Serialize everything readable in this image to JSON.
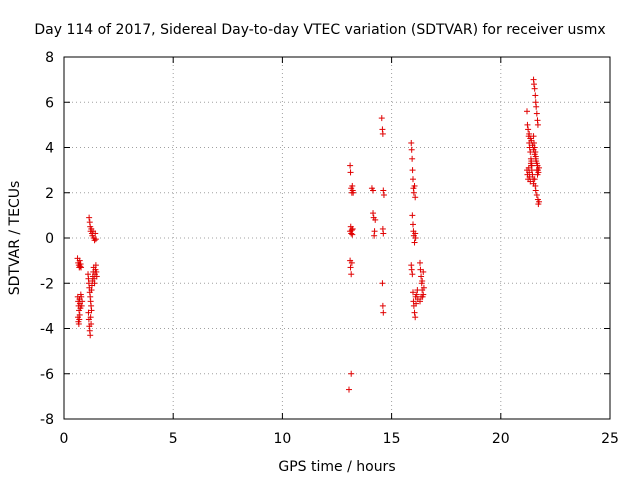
{
  "chart_data": {
    "type": "scatter",
    "title": "Day 114 of 2017, Sidereal Day-to-day VTEC variation (SDTVAR) for receiver usmx",
    "xlabel": "GPS time / hours",
    "ylabel": "SDTVAR / TECUs",
    "xlim": [
      0,
      25
    ],
    "ylim": [
      -8,
      8
    ],
    "xticks": [
      0,
      5,
      10,
      15,
      20,
      25
    ],
    "yticks": [
      -8,
      -6,
      -4,
      -2,
      0,
      2,
      4,
      6,
      8
    ],
    "xtick_labels": [
      "0",
      "5",
      "10",
      "15",
      "20",
      "25"
    ],
    "ytick_labels": [
      "-8",
      "-6",
      "-4",
      "-2",
      "0",
      "2",
      "4",
      "6",
      "8"
    ],
    "grid": true,
    "marker": "+",
    "color": "#e00000",
    "series": [
      {
        "name": "SDTVAR",
        "points": [
          [
            0.62,
            -0.9
          ],
          [
            0.65,
            -1.1
          ],
          [
            0.68,
            -1.2
          ],
          [
            0.7,
            -1.3
          ],
          [
            0.72,
            -1.0
          ],
          [
            0.74,
            -1.25
          ],
          [
            0.76,
            -1.15
          ],
          [
            0.78,
            -1.3
          ],
          [
            0.63,
            -2.6
          ],
          [
            0.65,
            -2.8
          ],
          [
            0.67,
            -3.0
          ],
          [
            0.69,
            -3.2
          ],
          [
            0.71,
            -2.7
          ],
          [
            0.73,
            -2.9
          ],
          [
            0.75,
            -3.1
          ],
          [
            0.77,
            -2.5
          ],
          [
            0.79,
            -2.6
          ],
          [
            0.81,
            -3.0
          ],
          [
            0.83,
            -2.8
          ],
          [
            0.64,
            -3.5
          ],
          [
            0.66,
            -3.7
          ],
          [
            0.68,
            -3.8
          ],
          [
            0.7,
            -3.6
          ],
          [
            0.72,
            -3.4
          ],
          [
            1.15,
            0.9
          ],
          [
            1.18,
            0.7
          ],
          [
            1.2,
            0.5
          ],
          [
            1.22,
            0.3
          ],
          [
            1.25,
            0.4
          ],
          [
            1.28,
            0.2
          ],
          [
            1.3,
            0.1
          ],
          [
            1.33,
            0.3
          ],
          [
            1.36,
            0.0
          ],
          [
            1.4,
            -0.1
          ],
          [
            1.43,
            0.2
          ],
          [
            1.46,
            -0.05
          ],
          [
            1.1,
            -1.6
          ],
          [
            1.12,
            -1.8
          ],
          [
            1.14,
            -2.0
          ],
          [
            1.16,
            -2.2
          ],
          [
            1.18,
            -2.4
          ],
          [
            1.2,
            -2.6
          ],
          [
            1.22,
            -2.8
          ],
          [
            1.24,
            -3.0
          ],
          [
            1.26,
            -2.3
          ],
          [
            1.28,
            -2.1
          ],
          [
            1.3,
            -1.9
          ],
          [
            1.32,
            -1.7
          ],
          [
            1.34,
            -1.5
          ],
          [
            1.36,
            -1.3
          ],
          [
            1.38,
            -1.8
          ],
          [
            1.4,
            -2.0
          ],
          [
            1.42,
            -1.6
          ],
          [
            1.44,
            -1.4
          ],
          [
            1.46,
            -1.2
          ],
          [
            1.48,
            -1.5
          ],
          [
            1.5,
            -1.7
          ],
          [
            1.12,
            -3.3
          ],
          [
            1.14,
            -3.6
          ],
          [
            1.16,
            -3.9
          ],
          [
            1.18,
            -4.1
          ],
          [
            1.2,
            -4.3
          ],
          [
            1.22,
            -3.5
          ],
          [
            1.24,
            -3.8
          ],
          [
            1.26,
            -3.2
          ],
          [
            13.1,
            3.2
          ],
          [
            13.12,
            2.9
          ],
          [
            13.15,
            2.2
          ],
          [
            13.18,
            2.0
          ],
          [
            13.2,
            2.3
          ],
          [
            13.22,
            2.1
          ],
          [
            13.24,
            2.0
          ],
          [
            13.1,
            0.3
          ],
          [
            13.13,
            0.5
          ],
          [
            13.15,
            0.2
          ],
          [
            13.18,
            0.35
          ],
          [
            13.2,
            0.15
          ],
          [
            13.22,
            0.4
          ],
          [
            13.1,
            -1.0
          ],
          [
            13.12,
            -1.3
          ],
          [
            13.15,
            -1.6
          ],
          [
            13.18,
            -1.1
          ],
          [
            13.15,
            -6.0
          ],
          [
            13.05,
            -6.7
          ],
          [
            14.1,
            2.2
          ],
          [
            14.15,
            2.1
          ],
          [
            14.2,
            0.1
          ],
          [
            14.22,
            0.3
          ],
          [
            14.18,
            0.9
          ],
          [
            14.15,
            1.1
          ],
          [
            14.25,
            0.8
          ],
          [
            14.55,
            5.3
          ],
          [
            14.58,
            4.8
          ],
          [
            14.6,
            4.6
          ],
          [
            14.62,
            2.1
          ],
          [
            14.65,
            1.9
          ],
          [
            14.6,
            0.4
          ],
          [
            14.62,
            0.2
          ],
          [
            14.58,
            -2.0
          ],
          [
            14.6,
            -3.0
          ],
          [
            14.62,
            -3.3
          ],
          [
            15.9,
            4.2
          ],
          [
            15.92,
            3.9
          ],
          [
            15.94,
            3.5
          ],
          [
            15.96,
            3.0
          ],
          [
            15.98,
            2.6
          ],
          [
            16.0,
            2.2
          ],
          [
            16.02,
            2.0
          ],
          [
            16.05,
            2.3
          ],
          [
            16.08,
            1.8
          ],
          [
            15.95,
            1.0
          ],
          [
            15.98,
            0.6
          ],
          [
            16.0,
            0.3
          ],
          [
            16.02,
            0.1
          ],
          [
            16.05,
            -0.2
          ],
          [
            16.08,
            0.2
          ],
          [
            16.1,
            0.0
          ],
          [
            15.9,
            -1.2
          ],
          [
            15.92,
            -1.4
          ],
          [
            15.95,
            -1.6
          ],
          [
            15.98,
            -2.4
          ],
          [
            16.0,
            -2.8
          ],
          [
            16.02,
            -3.0
          ],
          [
            16.05,
            -3.3
          ],
          [
            16.08,
            -3.5
          ],
          [
            16.1,
            -2.6
          ],
          [
            16.12,
            -2.9
          ],
          [
            16.15,
            -2.5
          ],
          [
            16.18,
            -2.3
          ],
          [
            16.2,
            -2.7
          ],
          [
            16.3,
            -1.1
          ],
          [
            16.32,
            -1.4
          ],
          [
            16.35,
            -1.7
          ],
          [
            16.38,
            -2.0
          ],
          [
            16.4,
            -2.3
          ],
          [
            16.42,
            -2.6
          ],
          [
            16.45,
            -2.5
          ],
          [
            16.48,
            -2.2
          ],
          [
            16.3,
            -2.8
          ],
          [
            16.35,
            -2.6
          ],
          [
            16.4,
            -1.9
          ],
          [
            16.45,
            -1.5
          ],
          [
            21.2,
            5.6
          ],
          [
            21.22,
            5.0
          ],
          [
            21.25,
            4.8
          ],
          [
            21.28,
            4.5
          ],
          [
            21.3,
            4.2
          ],
          [
            21.32,
            4.0
          ],
          [
            21.35,
            3.8
          ],
          [
            21.38,
            3.5
          ],
          [
            21.4,
            3.2
          ],
          [
            21.42,
            3.0
          ],
          [
            21.45,
            2.8
          ],
          [
            21.48,
            2.6
          ],
          [
            21.5,
            2.4
          ],
          [
            21.2,
            3.0
          ],
          [
            21.22,
            2.8
          ],
          [
            21.25,
            2.6
          ],
          [
            21.28,
            3.1
          ],
          [
            21.3,
            2.9
          ],
          [
            21.32,
            2.7
          ],
          [
            21.35,
            2.5
          ],
          [
            21.38,
            3.3
          ],
          [
            21.4,
            3.4
          ],
          [
            21.42,
            3.2
          ],
          [
            21.5,
            7.0
          ],
          [
            21.52,
            6.8
          ],
          [
            21.55,
            6.6
          ],
          [
            21.58,
            6.3
          ],
          [
            21.6,
            6.0
          ],
          [
            21.62,
            5.8
          ],
          [
            21.65,
            5.5
          ],
          [
            21.68,
            5.2
          ],
          [
            21.7,
            5.0
          ],
          [
            21.5,
            4.5
          ],
          [
            21.52,
            4.2
          ],
          [
            21.55,
            4.0
          ],
          [
            21.58,
            3.8
          ],
          [
            21.6,
            3.6
          ],
          [
            21.62,
            3.4
          ],
          [
            21.65,
            3.3
          ],
          [
            21.68,
            3.2
          ],
          [
            21.7,
            3.0
          ],
          [
            21.72,
            2.9
          ],
          [
            21.75,
            3.1
          ],
          [
            21.55,
            2.6
          ],
          [
            21.58,
            2.3
          ],
          [
            21.6,
            2.1
          ],
          [
            21.65,
            1.9
          ],
          [
            21.7,
            1.7
          ],
          [
            21.72,
            1.5
          ],
          [
            21.75,
            1.6
          ],
          [
            21.3,
            4.6
          ],
          [
            21.35,
            4.4
          ],
          [
            21.4,
            4.3
          ],
          [
            21.45,
            4.1
          ],
          [
            21.5,
            3.9
          ],
          [
            21.55,
            3.7
          ],
          [
            21.6,
            3.5
          ],
          [
            21.65,
            3.0
          ],
          [
            21.68,
            2.8
          ]
        ]
      }
    ]
  }
}
